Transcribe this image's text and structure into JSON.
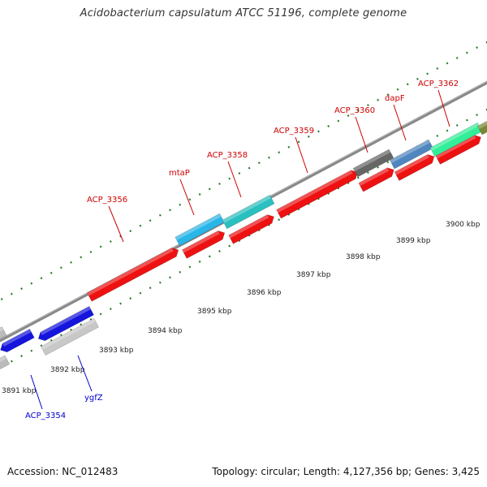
{
  "title": "Acidobacterium capsulatum ATCC 51196, complete genome",
  "footer": {
    "accession": "Accession: NC_012483",
    "summary": "Topology: circular; Length: 4,127,356 bp; Genes: 3,425"
  },
  "colors": {
    "forward_label": "#cc0000",
    "reverse_label": "#0000cc",
    "tick": "#2a7a2a",
    "backbone": "#888888"
  },
  "ticks": [
    "3891 kbp",
    "3892 kbp",
    "3893 kbp",
    "3894 kbp",
    "3895 kbp",
    "3896 kbp",
    "3897 kbp",
    "3898 kbp",
    "3899 kbp",
    "3900 kbp"
  ],
  "genes": [
    {
      "name": "ACP_3354",
      "strand": "reverse"
    },
    {
      "name": "ygfZ",
      "strand": "reverse"
    },
    {
      "name": "ACP_3356",
      "strand": "forward"
    },
    {
      "name": "mtaP",
      "strand": "forward"
    },
    {
      "name": "ACP_3358",
      "strand": "forward"
    },
    {
      "name": "ACP_3359",
      "strand": "forward"
    },
    {
      "name": "ACP_3360",
      "strand": "forward"
    },
    {
      "name": "dapF",
      "strand": "forward"
    },
    {
      "name": "ACP_3362",
      "strand": "forward"
    }
  ]
}
